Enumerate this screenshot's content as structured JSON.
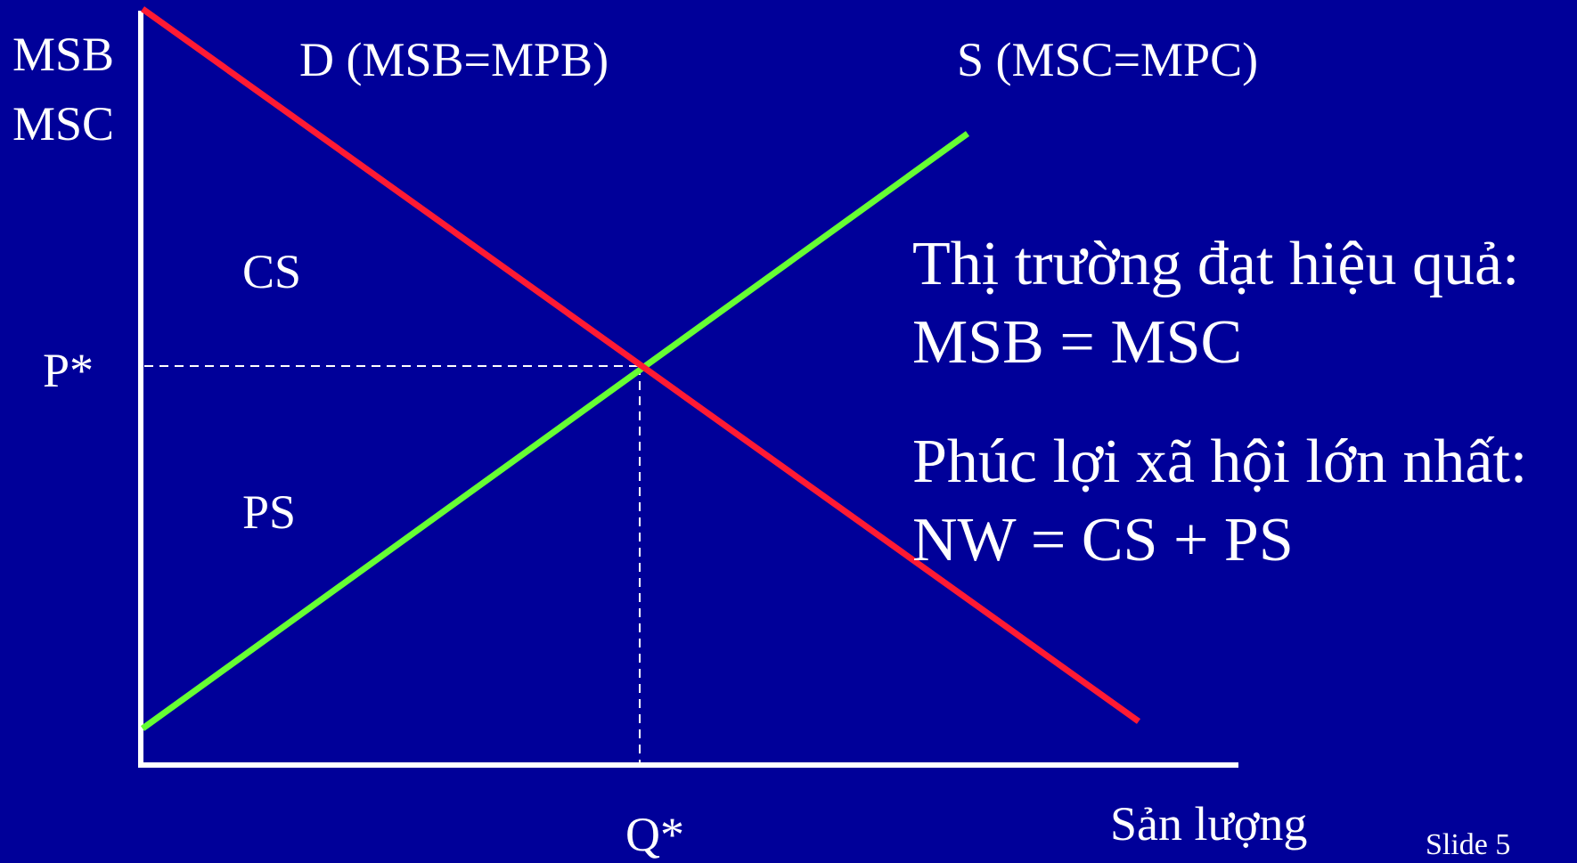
{
  "axes": {
    "y_label_line1": "MSB",
    "y_label_line2": "MSC",
    "x_label": "Sản lượng"
  },
  "curves": {
    "demand_label": "D (MSB=MPB)",
    "supply_label": "S (MSC=MPC)",
    "demand_color": "#ff1a33",
    "supply_color": "#66ff33"
  },
  "equilibrium": {
    "price_label": "P*",
    "quantity_label": "Q*"
  },
  "areas": {
    "consumer_surplus": "CS",
    "producer_surplus": "PS"
  },
  "notes": {
    "line1": "Thị trường đạt hiệu quả:",
    "line2": "MSB = MSC",
    "line3": "Phúc lợi xã hội lớn nhất:",
    "line4": "NW = CS + PS"
  },
  "slide_number": "Slide 5",
  "colors": {
    "background": "#000099",
    "axis": "#ffffff",
    "text": "#ffffff"
  }
}
